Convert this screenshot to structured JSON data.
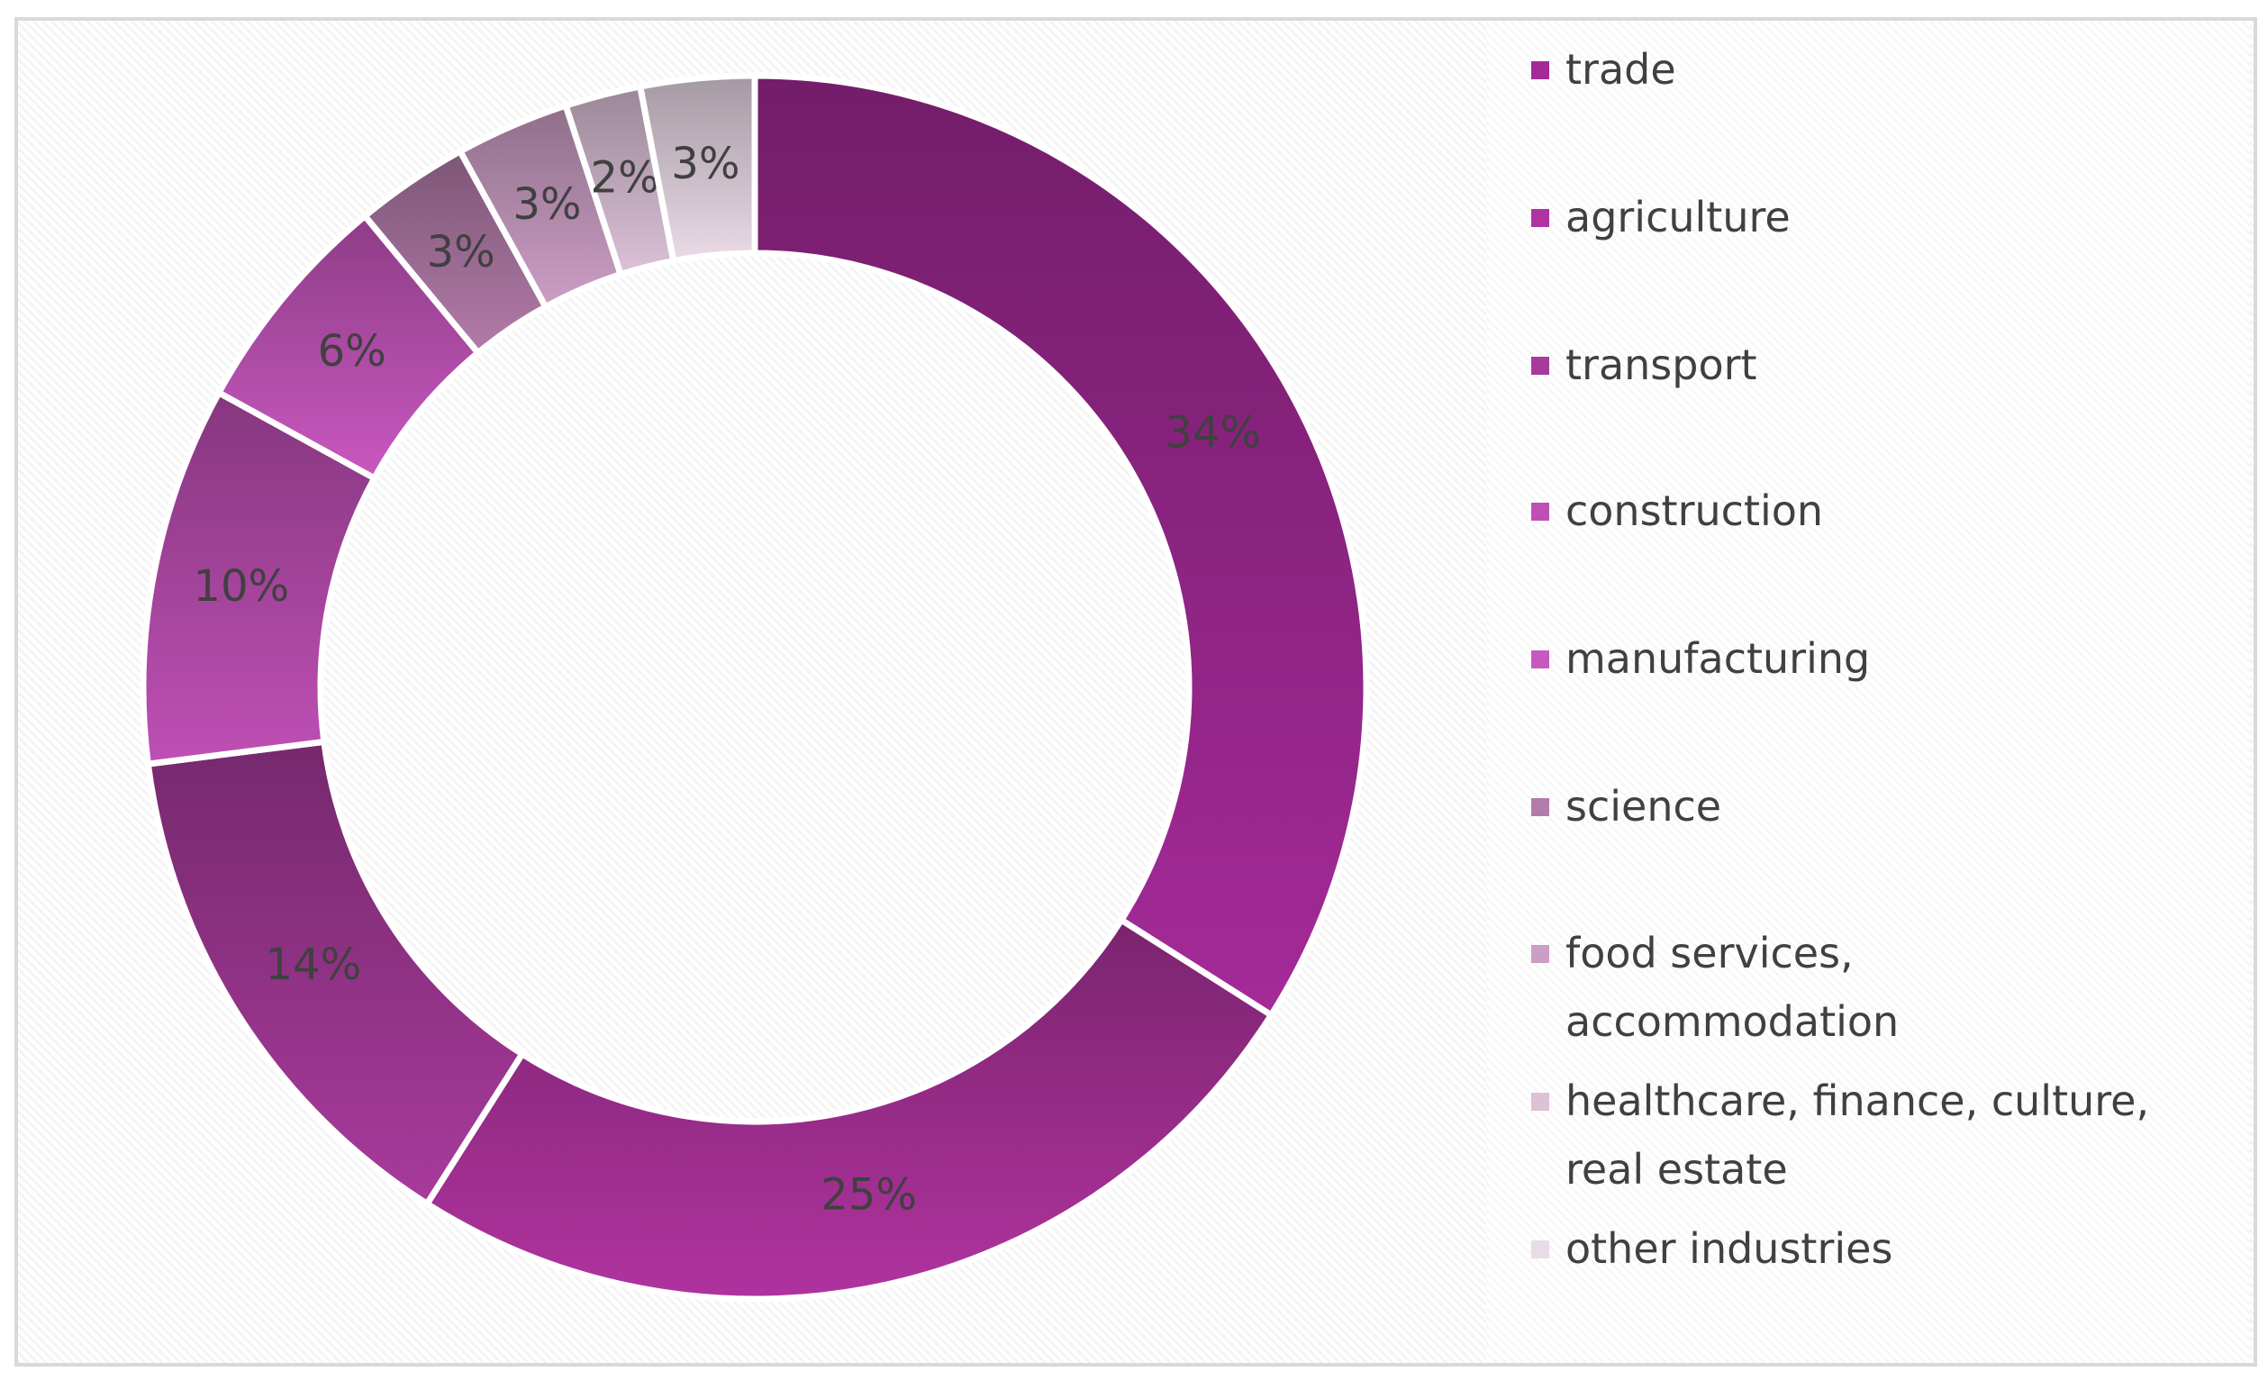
{
  "chart_data": {
    "type": "donut",
    "categories": [
      "trade",
      "agriculture",
      "transport",
      "construction",
      "manufacturing",
      "science",
      "food services, accommodation",
      "healthcare, finance, culture, real estate",
      "other industries"
    ],
    "values": [
      34,
      25,
      14,
      10,
      6,
      3,
      3,
      2,
      3
    ],
    "value_labels": [
      "34%",
      "25%",
      "14%",
      "10%",
      "6%",
      "3%",
      "3%",
      "2%",
      "3%"
    ],
    "colors": [
      "#a42a98",
      "#b0339f",
      "#a83a9c",
      "#bf4fb5",
      "#c957c0",
      "#b27ba9",
      "#cc9ec5",
      "#dcc1d7",
      "#eadbe7"
    ],
    "legend": "right"
  }
}
